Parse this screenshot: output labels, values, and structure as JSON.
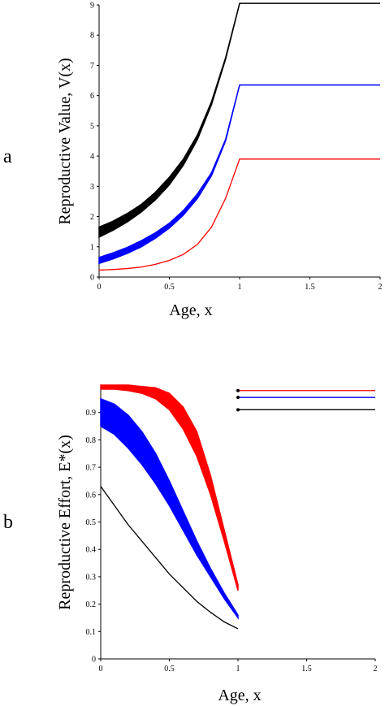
{
  "chart_data": [
    {
      "type": "line",
      "panel_label": "a",
      "xlabel": "Age, x",
      "ylabel": "Reproductive Value, V(x)",
      "xlim": [
        0,
        2
      ],
      "ylim": [
        0,
        9
      ],
      "xticks": [
        "0",
        "0.5",
        "1",
        "1.5",
        "2"
      ],
      "yticks": [
        "0",
        "1",
        "2",
        "3",
        "4",
        "5",
        "6",
        "7",
        "8",
        "9"
      ],
      "series": [
        {
          "color": "#000000",
          "x": [
            0,
            0.1,
            0.2,
            0.3,
            0.4,
            0.5,
            0.6,
            0.7,
            0.8,
            0.9,
            1.0,
            2.0
          ],
          "lower": [
            1.32,
            1.55,
            1.82,
            2.15,
            2.55,
            3.05,
            3.7,
            4.55,
            5.7,
            7.2,
            9.05,
            9.05
          ],
          "upper": [
            1.65,
            1.85,
            2.1,
            2.4,
            2.8,
            3.3,
            3.9,
            4.7,
            5.8,
            7.25,
            9.05,
            9.05
          ]
        },
        {
          "color": "#0000ff",
          "x": [
            0,
            0.1,
            0.2,
            0.3,
            0.4,
            0.5,
            0.6,
            0.7,
            0.8,
            0.9,
            1.0,
            2.0
          ],
          "lower": [
            0.45,
            0.6,
            0.78,
            1.0,
            1.28,
            1.62,
            2.05,
            2.6,
            3.35,
            4.5,
            6.35,
            6.35
          ],
          "upper": [
            0.65,
            0.8,
            0.98,
            1.2,
            1.46,
            1.78,
            2.2,
            2.75,
            3.45,
            4.55,
            6.35,
            6.35
          ]
        },
        {
          "color": "#ff0000",
          "x": [
            0,
            0.1,
            0.2,
            0.3,
            0.4,
            0.5,
            0.6,
            0.7,
            0.8,
            0.9,
            1.0,
            2.0
          ],
          "lower": [
            0.23,
            0.25,
            0.28,
            0.33,
            0.42,
            0.55,
            0.75,
            1.08,
            1.65,
            2.6,
            3.9,
            3.9
          ],
          "upper": [
            0.23,
            0.25,
            0.28,
            0.33,
            0.42,
            0.55,
            0.75,
            1.08,
            1.65,
            2.6,
            3.9,
            3.9
          ]
        }
      ]
    },
    {
      "type": "line",
      "panel_label": "b",
      "xlabel": "Age, x",
      "ylabel": "Reproductive Effort, E*(x)",
      "xlim": [
        0,
        2
      ],
      "ylim": [
        0,
        1
      ],
      "xticks": [
        "0",
        "0.5",
        "1",
        "1.5",
        "2"
      ],
      "yticks": [
        "0",
        "0.1",
        "0.2",
        "0.3",
        "0.4",
        "0.5",
        "0.6",
        "0.7",
        "0.8",
        "0.9"
      ],
      "series": [
        {
          "color": "#ff0000",
          "x": [
            0,
            0.1,
            0.2,
            0.3,
            0.4,
            0.5,
            0.6,
            0.7,
            0.8,
            0.9,
            1.0
          ],
          "lower": [
            0.985,
            0.985,
            0.98,
            0.97,
            0.95,
            0.91,
            0.84,
            0.74,
            0.6,
            0.43,
            0.25
          ],
          "upper": [
            1.0,
            1.0,
            1.0,
            0.995,
            0.99,
            0.97,
            0.92,
            0.83,
            0.67,
            0.47,
            0.27
          ],
          "right_segment": {
            "x": [
              1.0,
              2.0
            ],
            "y": 0.98
          }
        },
        {
          "color": "#0000ff",
          "x": [
            0,
            0.1,
            0.2,
            0.3,
            0.4,
            0.5,
            0.6,
            0.7,
            0.8,
            0.9,
            1.0
          ],
          "lower": [
            0.85,
            0.82,
            0.77,
            0.71,
            0.64,
            0.56,
            0.47,
            0.38,
            0.3,
            0.22,
            0.15
          ],
          "upper": [
            0.95,
            0.93,
            0.89,
            0.83,
            0.75,
            0.65,
            0.54,
            0.43,
            0.33,
            0.24,
            0.16
          ],
          "right_segment": {
            "x": [
              1.0,
              2.0
            ],
            "y": 0.955
          }
        },
        {
          "color": "#000000",
          "x": [
            0,
            0.1,
            0.2,
            0.3,
            0.4,
            0.5,
            0.6,
            0.7,
            0.8,
            0.9,
            1.0
          ],
          "lower": [
            0.63,
            0.56,
            0.49,
            0.43,
            0.37,
            0.31,
            0.26,
            0.21,
            0.17,
            0.135,
            0.11
          ],
          "upper": [
            0.63,
            0.56,
            0.49,
            0.43,
            0.37,
            0.31,
            0.26,
            0.21,
            0.17,
            0.135,
            0.11
          ],
          "right_segment": {
            "x": [
              1.0,
              2.0
            ],
            "y": 0.91
          }
        }
      ]
    }
  ]
}
